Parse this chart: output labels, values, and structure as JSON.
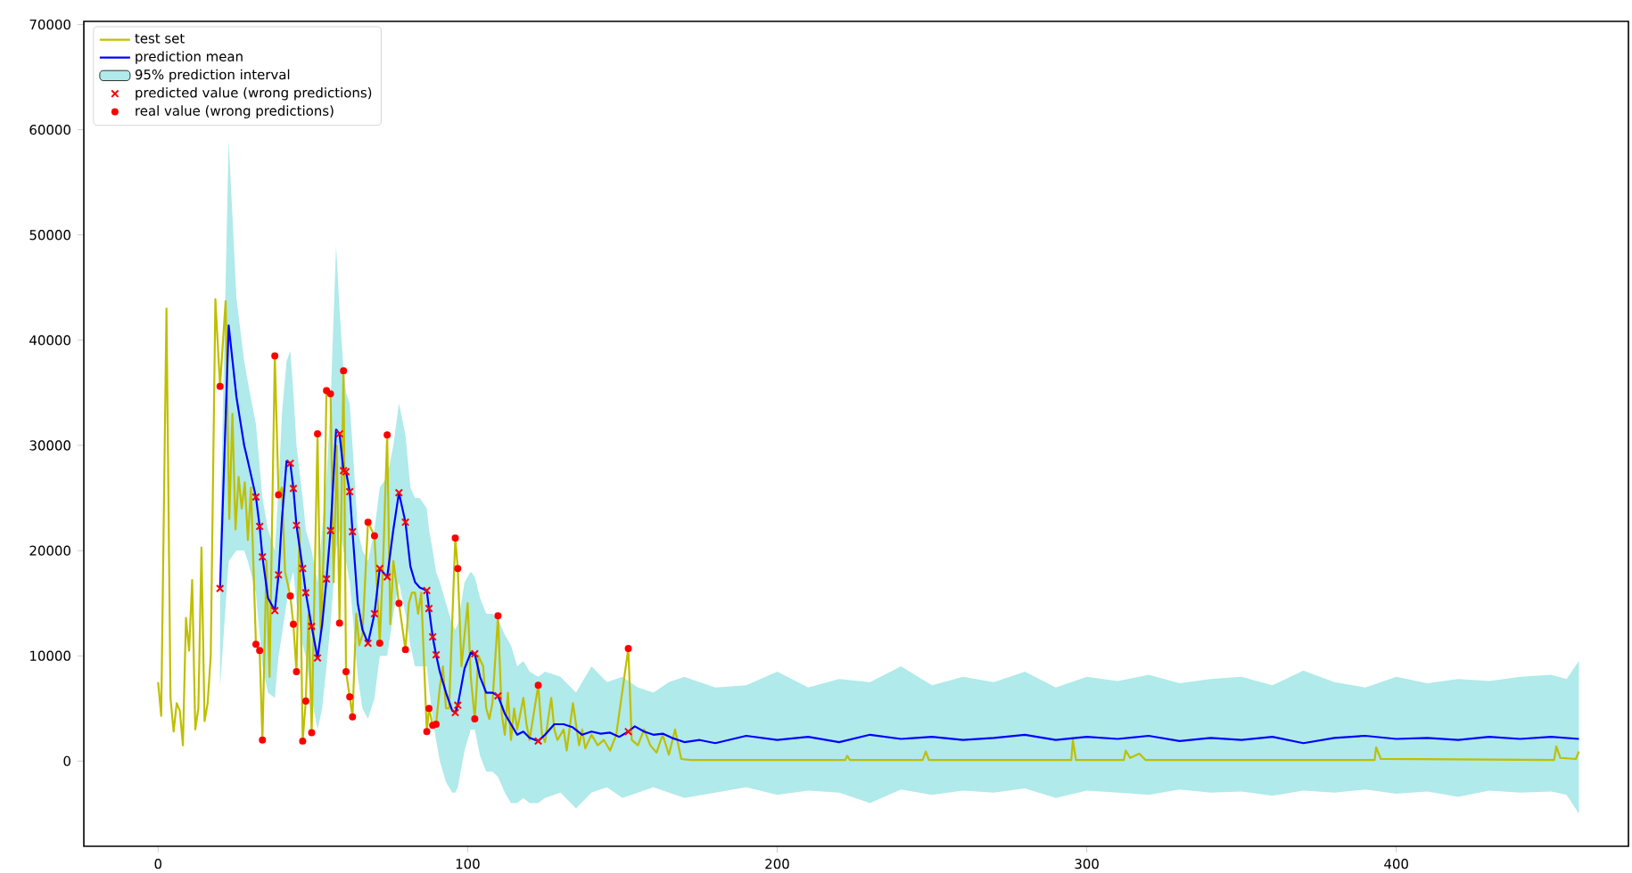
{
  "chart_data": {
    "type": "line",
    "xlim": [
      -24,
      475
    ],
    "ylim": [
      -8100,
      70300
    ],
    "xticks": [
      0,
      100,
      200,
      300,
      400
    ],
    "yticks": [
      0,
      10000,
      20000,
      30000,
      40000,
      50000,
      60000,
      70000
    ],
    "legend": "top left",
    "series": [
      {
        "name": "test set",
        "color": "#bfbf00",
        "x": [
          0,
          1,
          2.7,
          4,
          5,
          6,
          7,
          8,
          9,
          10,
          11,
          12,
          13,
          14,
          15,
          16,
          17,
          18.5,
          20,
          21.8,
          23,
          24,
          25,
          26,
          27,
          28,
          29,
          30,
          31.6,
          32.8,
          33.7,
          35,
          36,
          37.7,
          38.9,
          40,
          41,
          42.7,
          43.7,
          44.7,
          45.7,
          46.7,
          47.7,
          48.6,
          49.6,
          51.5,
          52.5,
          53.5,
          54.4,
          55.7,
          56.7,
          57.7,
          58.6,
          59.9,
          60.7,
          61.9,
          62.8,
          64,
          65,
          66,
          67.8,
          69.9,
          71.6,
          72.8,
          74,
          75,
          76,
          77.8,
          79.9,
          81,
          82,
          83,
          84,
          85,
          86.8,
          87.5,
          88.7,
          89.8,
          91,
          92,
          93,
          94,
          96,
          96.8,
          98,
          100,
          101,
          102.3,
          103.5,
          105,
          106,
          107,
          108,
          109.8,
          111,
          112,
          113,
          114,
          115,
          116,
          118,
          119,
          120,
          122.8,
          124,
          125,
          126,
          127,
          128,
          129,
          131,
          132,
          134,
          136,
          137,
          138,
          140,
          142,
          144,
          146,
          148,
          151.9,
          153,
          155,
          157,
          159,
          161,
          163,
          165,
          167,
          169,
          172,
          222,
          222.6,
          223.5,
          247,
          248,
          249,
          295,
          295.5,
          296.5,
          312,
          312.6,
          314,
          317,
          319,
          393,
          393.5,
          395,
          451,
          451.7,
          453,
          458,
          459
        ],
        "values": [
          7500,
          4300,
          43000,
          6000,
          2800,
          5500,
          4800,
          1500,
          13600,
          10500,
          17200,
          3000,
          5000,
          20300,
          3800,
          5500,
          10000,
          43900,
          35600,
          43700,
          23000,
          33000,
          22000,
          27000,
          24000,
          26500,
          21000,
          26000,
          11100,
          10500,
          2000,
          19000,
          8000,
          38500,
          25300,
          26000,
          18000,
          15700,
          13000,
          8500,
          22000,
          1900,
          5700,
          14000,
          2700,
          31100,
          12000,
          20000,
          35200,
          34900,
          17000,
          30000,
          13100,
          37100,
          8500,
          6100,
          4200,
          14000,
          11000,
          12000,
          22700,
          21400,
          11200,
          20000,
          31000,
          13000,
          19000,
          15000,
          10600,
          15000,
          16000,
          16000,
          14000,
          16000,
          2800,
          5000,
          3400,
          3500,
          7000,
          9000,
          5000,
          5000,
          21200,
          18300,
          9000,
          15000,
          8000,
          4000,
          10000,
          9000,
          5000,
          4000,
          5500,
          13800,
          4500,
          2500,
          6500,
          2000,
          5000,
          3000,
          6000,
          3500,
          2000,
          7200,
          2500,
          1800,
          4000,
          6000,
          3000,
          2000,
          3000,
          1000,
          5500,
          1500,
          3000,
          1200,
          2500,
          1500,
          2000,
          1000,
          2500,
          10700,
          2000,
          1500,
          3000,
          1500,
          800,
          2500,
          600,
          3000,
          200,
          100,
          100,
          500,
          100,
          100,
          900,
          100,
          100,
          2000,
          100,
          100,
          1000,
          300,
          700,
          100,
          100,
          1300,
          200,
          100,
          1400,
          300,
          200,
          900
        ]
      },
      {
        "name": "prediction mean",
        "color": "#0000ff",
        "x": [
          20,
          22.8,
          25.3,
          27.8,
          29,
          31.6,
          32.8,
          33.7,
          35.5,
          37.7,
          38.9,
          40,
          41.5,
          42.7,
          43.7,
          44.7,
          46.7,
          47.7,
          49.6,
          51.5,
          53,
          54.4,
          55.7,
          57.5,
          58.6,
          59.9,
          60.7,
          61.9,
          62.8,
          64.5,
          66,
          67.8,
          69.9,
          71.6,
          74,
          76,
          77.8,
          79.9,
          81.5,
          83,
          84.5,
          86.8,
          87.5,
          88.7,
          89.8,
          91,
          93,
          95,
          96,
          96.8,
          99,
          101,
          102.3,
          104,
          106,
          108,
          109.8,
          112,
          114,
          116,
          118,
          120,
          122.8,
          125,
          128,
          131,
          134,
          137,
          140,
          143,
          146,
          149,
          151.9,
          154,
          157,
          160,
          163,
          166,
          170,
          175,
          180,
          190,
          200,
          210,
          220,
          230,
          240,
          250,
          260,
          270,
          280,
          290,
          300,
          310,
          320,
          330,
          340,
          350,
          360,
          370,
          380,
          390,
          400,
          410,
          420,
          430,
          440,
          450,
          459
        ],
        "values": [
          16400,
          41400,
          34600,
          30000,
          28500,
          25100,
          22300,
          19400,
          15500,
          14300,
          17700,
          23000,
          28500,
          28300,
          25900,
          22400,
          18300,
          16000,
          12800,
          9800,
          13000,
          17300,
          21900,
          31500,
          31100,
          27600,
          27500,
          25600,
          21800,
          15000,
          12500,
          11200,
          14000,
          18300,
          17500,
          22000,
          25500,
          22700,
          18500,
          17000,
          16500,
          16200,
          14500,
          11800,
          10100,
          8500,
          6500,
          4800,
          4600,
          5300,
          8800,
          10300,
          10200,
          8000,
          6500,
          6500,
          6200,
          4500,
          3500,
          2500,
          2800,
          2200,
          1900,
          2500,
          3500,
          3500,
          3200,
          2500,
          2800,
          2600,
          2700,
          2300,
          2800,
          3300,
          2800,
          2500,
          2600,
          2200,
          1800,
          2000,
          1700,
          2400,
          2000,
          2300,
          1800,
          2500,
          2100,
          2300,
          2000,
          2200,
          2500,
          2000,
          2300,
          2100,
          2400,
          1900,
          2200,
          2000,
          2300,
          1700,
          2200,
          2400,
          2100,
          2200,
          2000,
          2300,
          2100,
          2300,
          2100
        ]
      },
      {
        "name": "95% prediction interval",
        "type": "area",
        "color": "#b0eaea",
        "values": [
          null,
          null,
          null,
          null,
          null,
          null,
          null,
          null,
          null,
          null,
          null,
          null,
          null,
          null,
          null,
          null,
          null,
          null,
          null,
          null,
          null,
          null,
          null,
          null,
          null,
          null,
          null,
          null,
          null,
          null,
          null,
          null,
          null,
          null,
          null,
          null,
          null,
          null,
          null,
          null,
          null,
          null,
          null,
          null,
          null,
          null,
          null,
          null,
          null,
          null,
          null,
          null,
          null,
          null,
          null,
          null,
          null,
          null,
          null,
          null,
          null,
          null,
          null,
          null,
          null,
          null,
          null,
          null,
          null,
          null,
          null,
          null,
          null,
          null,
          null,
          null,
          null,
          null,
          null,
          null,
          null,
          null,
          null,
          null,
          null,
          null,
          null,
          null,
          null,
          null,
          null,
          null,
          null,
          null,
          null,
          null,
          null,
          null,
          null,
          null,
          null,
          null,
          null
        ],
        "x": [
          20,
          22.8,
          25.3,
          27.8,
          29,
          31.6,
          32.8,
          33.7,
          35.5,
          37.7,
          38.9,
          40,
          41.5,
          42.7,
          43.7,
          44.7,
          46.7,
          47.7,
          49.6,
          51.5,
          53,
          54.4,
          55.7,
          57.5,
          58.6,
          59.9,
          60.7,
          61.9,
          62.8,
          64.5,
          66,
          67.8,
          69.9,
          71.6,
          74,
          76,
          77.8,
          79.9,
          81.5,
          83,
          84.5,
          86.8,
          87.5,
          88.7,
          89.8,
          91,
          93,
          95,
          96,
          96.8,
          99,
          101,
          102.3,
          104,
          106,
          108,
          109.8,
          112,
          114,
          116,
          118,
          120,
          122.8,
          125,
          130,
          135,
          140,
          145,
          150,
          155,
          160,
          165,
          170,
          180,
          190,
          200,
          210,
          220,
          230,
          240,
          250,
          260,
          270,
          280,
          290,
          300,
          310,
          320,
          330,
          340,
          350,
          360,
          370,
          380,
          390,
          400,
          410,
          420,
          430,
          440,
          450,
          455,
          459
        ],
        "lower": [
          7000,
          19000,
          20000,
          20000,
          19000,
          16000,
          12000,
          9000,
          6500,
          6000,
          10000,
          12000,
          15000,
          17000,
          18000,
          15000,
          11000,
          10000,
          6000,
          3000,
          5000,
          9000,
          13000,
          20000,
          22000,
          20000,
          19000,
          17000,
          14000,
          8000,
          5000,
          4000,
          6000,
          10000,
          10000,
          14000,
          17000,
          14000,
          11000,
          9000,
          9000,
          9000,
          7000,
          4000,
          2000,
          0,
          -2000,
          -3000,
          -3000,
          -2500,
          1000,
          3000,
          3000,
          500,
          -1000,
          -1000,
          -1500,
          -3000,
          -4000,
          -4000,
          -3500,
          -4000,
          -4000,
          -3500,
          -3000,
          -4500,
          -3000,
          -2500,
          -3500,
          -3000,
          -2500,
          -3000,
          -3500,
          -3000,
          -2500,
          -3200,
          -2800,
          -3000,
          -4000,
          -2700,
          -3200,
          -2800,
          -3000,
          -2600,
          -3500,
          -2800,
          -3000,
          -3200,
          -2700,
          -3000,
          -2900,
          -3300,
          -2800,
          -3000,
          -2700,
          -3100,
          -2900,
          -3400,
          -2800,
          -3000,
          -2900,
          -3200,
          -5000
        ],
        "upper": [
          21000,
          59000,
          44000,
          38000,
          36000,
          32000,
          28000,
          25000,
          22000,
          20000,
          26000,
          33000,
          38000,
          39000,
          35000,
          30000,
          25000,
          22000,
          20000,
          17000,
          22000,
          27000,
          34000,
          49000,
          43000,
          37000,
          35000,
          34000,
          30000,
          22000,
          20000,
          19000,
          22000,
          26000,
          27000,
          30000,
          34000,
          31000,
          26000,
          25000,
          25000,
          24000,
          22000,
          20000,
          18000,
          17000,
          15000,
          13000,
          12500,
          13000,
          17000,
          18000,
          17500,
          15500,
          14000,
          14000,
          13500,
          12000,
          11000,
          9000,
          9500,
          8500,
          8000,
          8500,
          8000,
          6500,
          9000,
          7500,
          8000,
          7000,
          6500,
          7500,
          8000,
          7000,
          7200,
          8500,
          7000,
          7800,
          7500,
          9000,
          7200,
          8000,
          7500,
          8500,
          7000,
          8000,
          7600,
          8200,
          7400,
          7800,
          8000,
          7200,
          8600,
          7500,
          7000,
          8000,
          7400,
          7800,
          7600,
          8000,
          8200,
          7800,
          9500
        ]
      },
      {
        "name": "predicted value (wrong predictions)",
        "type": "scatter",
        "marker": "cross",
        "color": "#ff0000",
        "x": [
          20,
          31.6,
          32.8,
          33.7,
          37.7,
          38.9,
          42.7,
          43.7,
          44.7,
          46.7,
          47.7,
          49.6,
          51.5,
          54.4,
          55.7,
          58.6,
          59.9,
          60.7,
          61.9,
          62.8,
          67.8,
          69.9,
          71.6,
          74,
          77.8,
          79.9,
          86.8,
          87.5,
          88.7,
          89.8,
          96,
          96.8,
          102.3,
          109.8,
          122.8,
          151.9
        ],
        "values": [
          16400,
          25100,
          22300,
          19400,
          14300,
          17700,
          28300,
          25900,
          22400,
          18300,
          16000,
          12800,
          9800,
          17300,
          21900,
          31100,
          27600,
          27500,
          25600,
          21800,
          11200,
          14000,
          18300,
          17500,
          25500,
          22700,
          16200,
          14500,
          11800,
          10100,
          4600,
          5300,
          10200,
          6200,
          1900,
          2800
        ]
      },
      {
        "name": "real value (wrong predictions)",
        "type": "scatter",
        "marker": "circle",
        "color": "#ff0000",
        "x": [
          20,
          31.6,
          32.8,
          33.7,
          37.7,
          38.9,
          42.7,
          43.7,
          44.7,
          46.7,
          47.7,
          49.6,
          51.5,
          54.4,
          55.7,
          58.6,
          59.9,
          60.7,
          61.9,
          62.8,
          67.8,
          69.9,
          71.6,
          74,
          77.8,
          79.9,
          86.8,
          87.5,
          88.7,
          89.8,
          96,
          96.8,
          102.3,
          109.8,
          122.8,
          151.9
        ],
        "values": [
          35600,
          11100,
          10500,
          2000,
          38500,
          25300,
          15700,
          13000,
          8500,
          1900,
          5700,
          2700,
          31100,
          35200,
          34900,
          13100,
          37100,
          8500,
          6100,
          4200,
          22700,
          21400,
          11200,
          31000,
          15000,
          10600,
          2800,
          5000,
          3400,
          3500,
          21200,
          18300,
          4000,
          13800,
          7200,
          10700
        ]
      }
    ]
  }
}
